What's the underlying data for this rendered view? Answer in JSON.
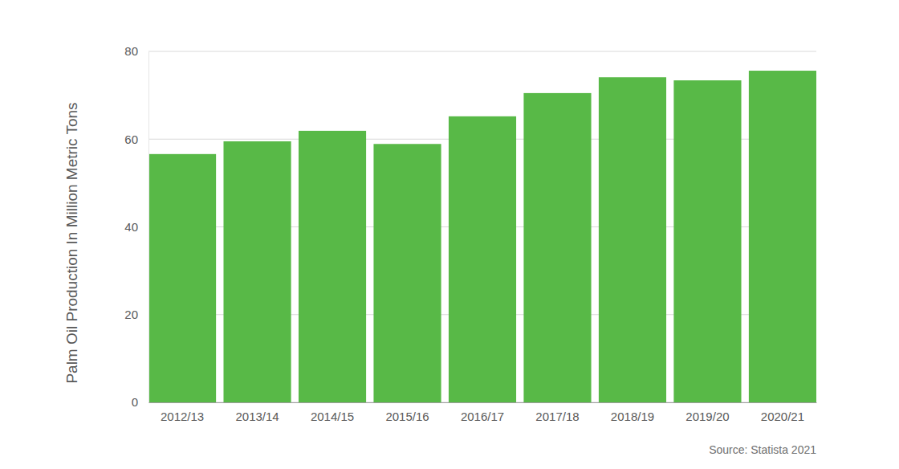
{
  "chart_data": {
    "type": "bar",
    "y_label": "Palm Oil Production In Million Metric Tons",
    "source": "Source: Statista 2021",
    "categories": [
      "2012/13",
      "2013/14",
      "2014/15",
      "2015/16",
      "2016/17",
      "2017/18",
      "2018/19",
      "2019/20",
      "2020/21"
    ],
    "values": [
      56.6,
      59.5,
      61.9,
      58.9,
      65.2,
      70.5,
      74.1,
      73.4,
      75.6
    ],
    "color": "#58b947",
    "ylim": [
      0,
      80
    ],
    "yticks": [
      0,
      20,
      40,
      60,
      80
    ],
    "grid": true
  }
}
